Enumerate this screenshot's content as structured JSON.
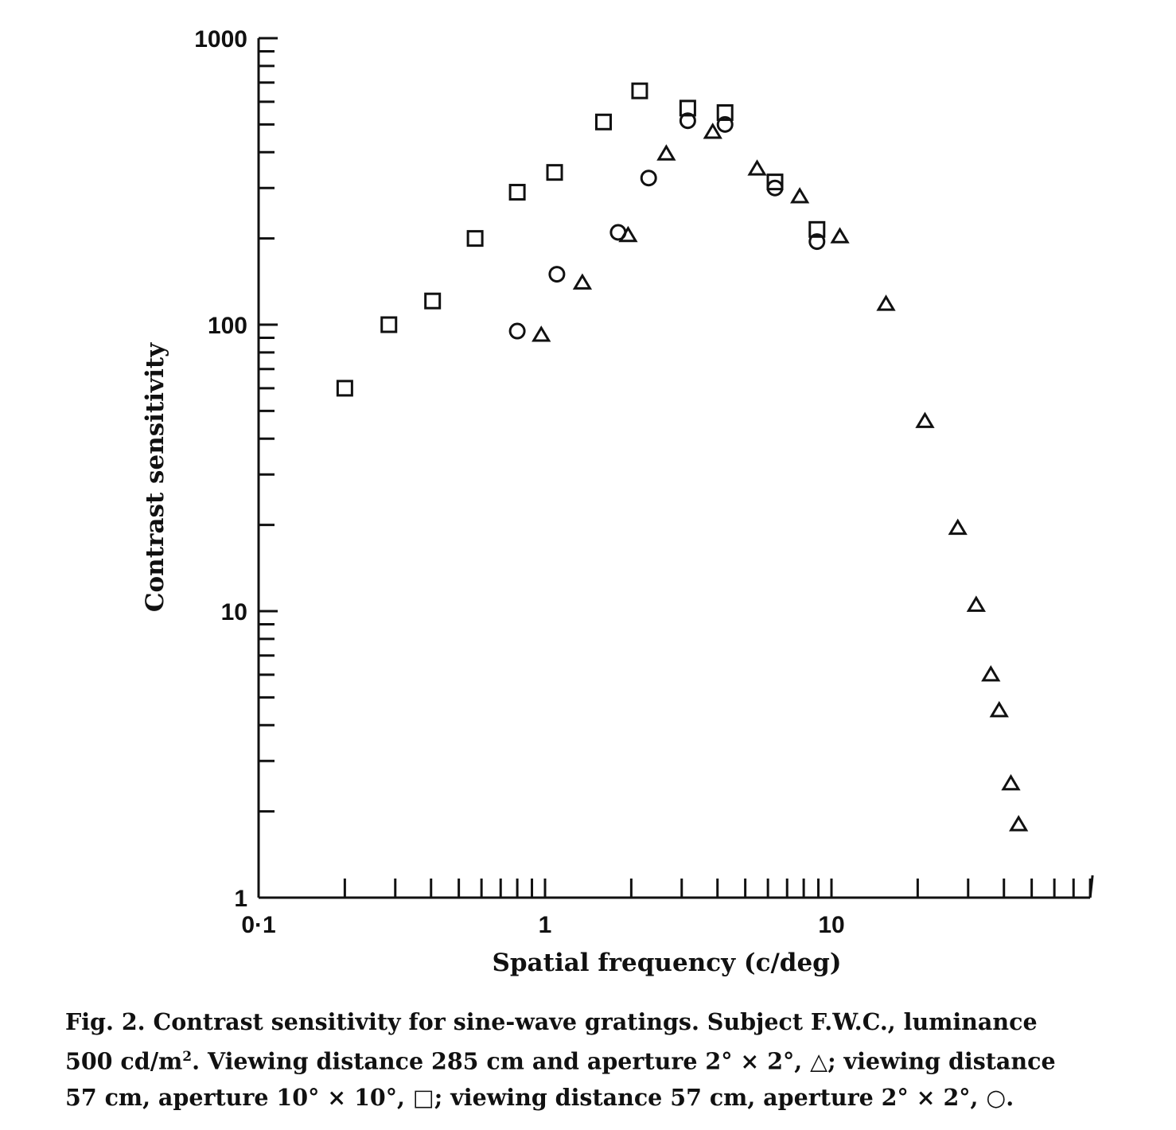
{
  "chart_data": {
    "type": "scatter",
    "x_scale": "log",
    "y_scale": "log",
    "xlim": [
      0.1,
      80
    ],
    "ylim": [
      1,
      1000
    ],
    "xlabel": "Spatial frequency (c/deg)",
    "ylabel": "Contrast sensitivity",
    "x_tick_labels": [
      {
        "value": 0.1,
        "label": "0·1"
      },
      {
        "value": 1,
        "label": "1"
      },
      {
        "value": 10,
        "label": "10"
      }
    ],
    "y_tick_labels": [
      {
        "value": 1,
        "label": "1"
      },
      {
        "value": 10,
        "label": "10"
      },
      {
        "value": 100,
        "label": "100"
      },
      {
        "value": 1000,
        "label": "1000"
      }
    ],
    "grid": false,
    "series": [
      {
        "marker": "triangle",
        "points": [
          [
            0.97,
            92
          ],
          [
            1.35,
            140
          ],
          [
            1.95,
            205
          ],
          [
            2.65,
            395
          ],
          [
            3.85,
            470
          ],
          [
            5.5,
            350
          ],
          [
            7.75,
            280
          ],
          [
            10.7,
            203
          ],
          [
            15.5,
            118
          ],
          [
            21.2,
            46
          ],
          [
            27.6,
            19.5
          ],
          [
            32,
            10.5
          ],
          [
            36,
            6
          ],
          [
            38.5,
            4.5
          ],
          [
            42.3,
            2.5
          ],
          [
            45,
            1.8
          ]
        ]
      },
      {
        "marker": "square",
        "points": [
          [
            0.2,
            60
          ],
          [
            0.285,
            100
          ],
          [
            0.405,
            121
          ],
          [
            0.57,
            200
          ],
          [
            0.8,
            290
          ],
          [
            1.08,
            340
          ],
          [
            1.6,
            510
          ],
          [
            2.14,
            655
          ],
          [
            3.15,
            570
          ],
          [
            4.25,
            550
          ],
          [
            6.35,
            315
          ],
          [
            8.9,
            215
          ]
        ]
      },
      {
        "marker": "circle",
        "points": [
          [
            0.8,
            95
          ],
          [
            1.1,
            150
          ],
          [
            1.8,
            210
          ],
          [
            2.3,
            325
          ],
          [
            3.15,
            515
          ],
          [
            4.25,
            500
          ],
          [
            6.35,
            300
          ],
          [
            8.9,
            195
          ]
        ]
      }
    ]
  },
  "caption": {
    "line1": "Fig. 2. Contrast sensitivity for sine-wave gratings. Subject F.W.C., luminance",
    "line2a": "500 cd/m",
    "line2_sup": "2",
    "line2b": ". Viewing distance 285 cm and aperture 2° × 2°,",
    "line2_symbol": "△",
    "line2c": "; viewing distance",
    "line3a": "57 cm, aperture 10° × 10°,",
    "line3_symbol1": "□",
    "line3b": "; viewing distance 57 cm, aperture 2° × 2°,",
    "line3_symbol2": "○",
    "line3c": "."
  }
}
